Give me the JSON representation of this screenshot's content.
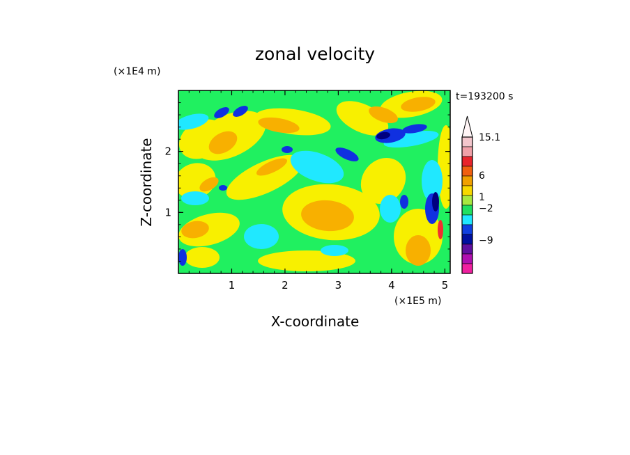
{
  "chart_data": {
    "type": "heatmap",
    "title": "zonal velocity",
    "xlabel": "X-coordinate",
    "ylabel": "Z-coordinate",
    "x_unit": "(×1E5 m)",
    "y_unit": "(×1E4 m)",
    "time_label": "t=193200 s",
    "xlim": [
      0,
      5.1
    ],
    "ylim": [
      0,
      3
    ],
    "x_ticks": [
      1,
      2,
      3,
      4,
      5
    ],
    "y_ticks": [
      1,
      2
    ],
    "colorbar": {
      "labels": [
        "15.1",
        "6",
        "1",
        "−2",
        "−9"
      ],
      "label_levels": [
        15.1,
        6,
        1,
        -2,
        -9
      ],
      "extend_max": true,
      "bins": [
        {
          "color": "#f3c6cc"
        },
        {
          "color": "#f0a0a8"
        },
        {
          "color": "#e8242c"
        },
        {
          "color": "#f06010"
        },
        {
          "color": "#f0a000"
        },
        {
          "color": "#f8d800"
        },
        {
          "color": "#a8e840"
        },
        {
          "color": "#20e060"
        },
        {
          "color": "#20e8ff"
        },
        {
          "color": "#1040e0"
        },
        {
          "color": "#0010a0"
        },
        {
          "color": "#6010a0"
        },
        {
          "color": "#b010b0"
        },
        {
          "color": "#f020a0"
        }
      ]
    },
    "palette": {
      "orange": "#f8b000",
      "yellow": "#f8f000",
      "green": "#20f060",
      "cyan": "#20e8ff",
      "blue": "#1030e0",
      "navy": "#000080",
      "red": "#f03030"
    }
  }
}
